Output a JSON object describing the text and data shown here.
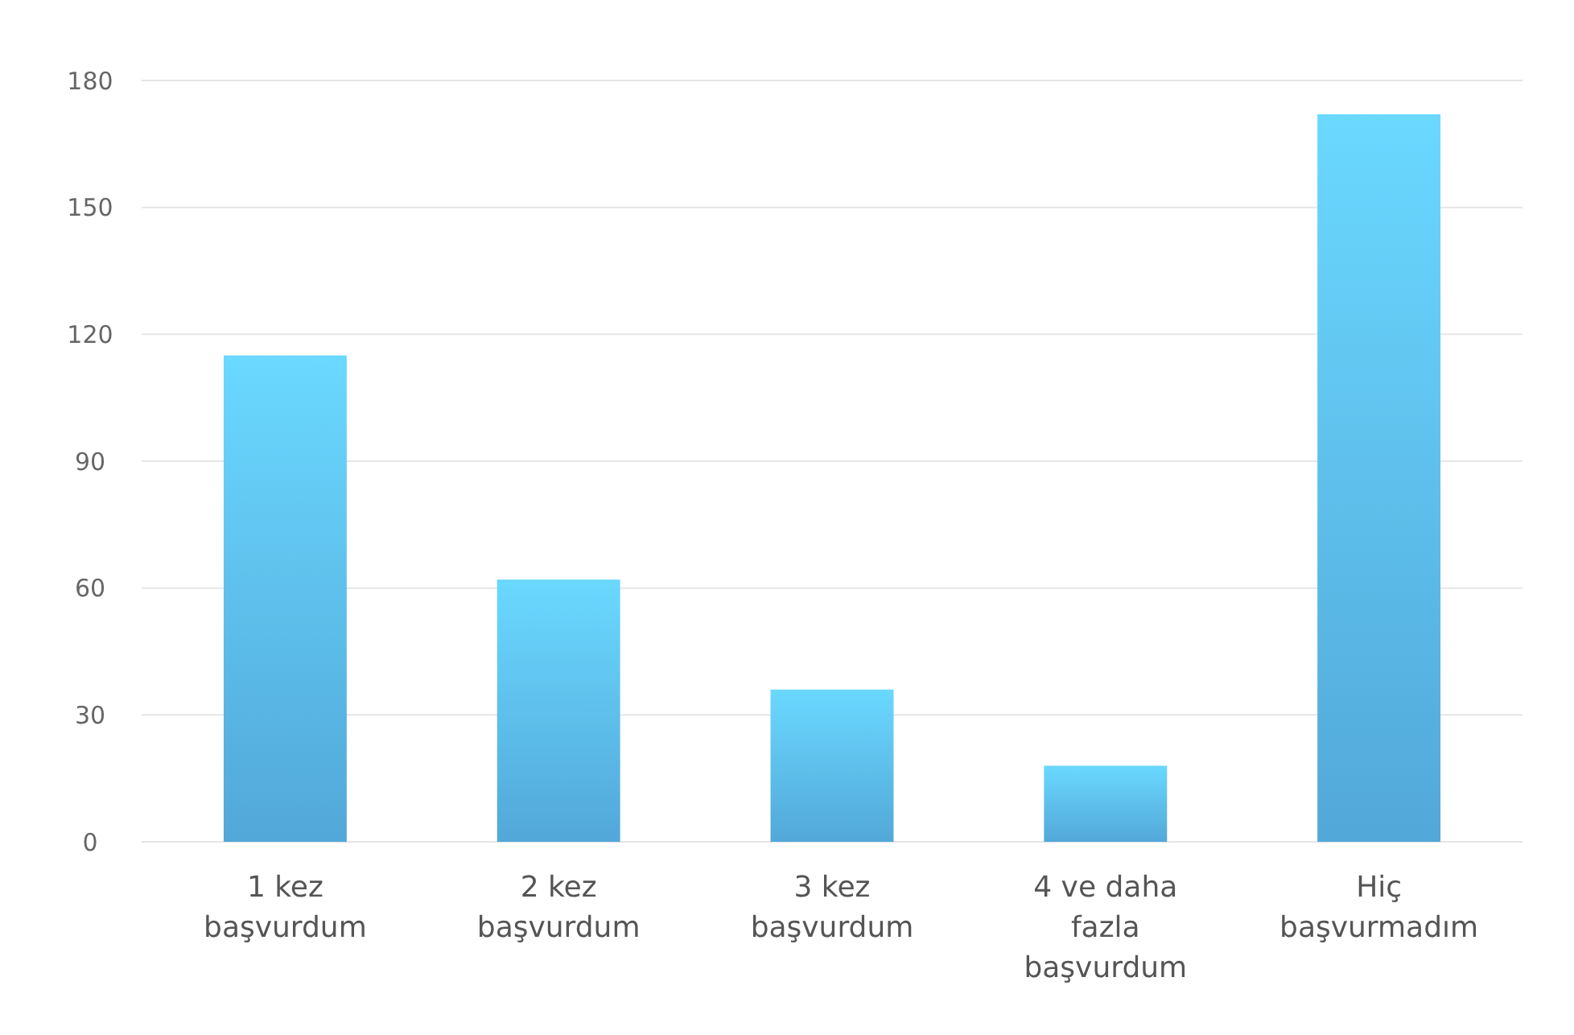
{
  "chart_data": {
    "type": "bar",
    "categories": [
      "1 kez başvurdum",
      "2 kez başvurdum",
      "3 kez başvurdum",
      "4 ve daha fazla başvurdum",
      "Hiç başvurmadım"
    ],
    "values": [
      115,
      62,
      36,
      18,
      172
    ],
    "color": "#5ab8ec",
    "ylim": [
      0,
      180
    ],
    "yticks": [
      0,
      30,
      60,
      90,
      120,
      150,
      180
    ],
    "grid": "y"
  }
}
